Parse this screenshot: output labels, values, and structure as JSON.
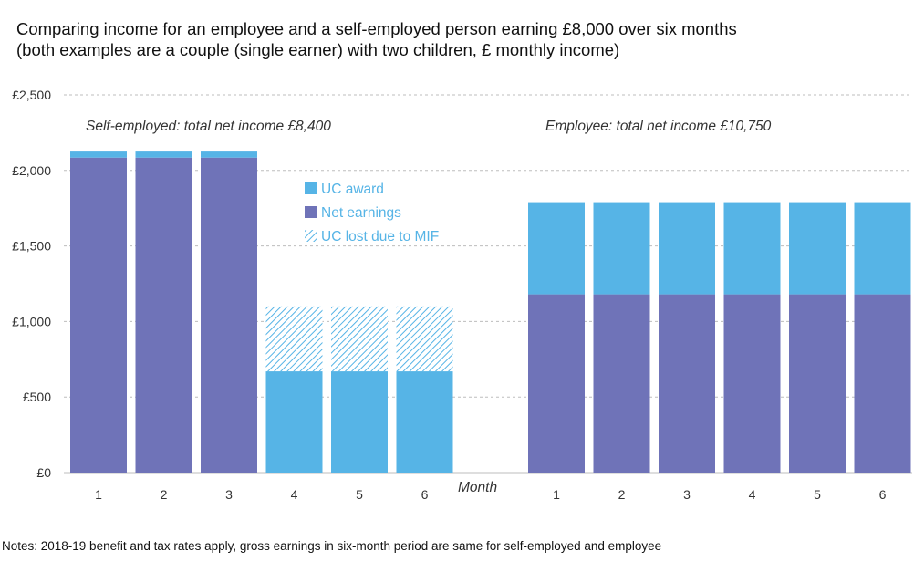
{
  "title_line1": "Comparing income for an employee and a self-employed person earning £8,000 over six months",
  "title_line2": "(both examples are a couple (single earner) with two children, £ monthly income)",
  "notes": "Notes: 2018-19 benefit and tax rates apply, gross earnings in six-month period are same for self-employed and employee",
  "colors": {
    "uc_award": "#56b4e6",
    "net_earnings": "#6f73b8",
    "uc_lost_hatch": "#56b4e6",
    "grid": "#bdbdbd",
    "legend_text": "#56b4e6"
  },
  "chart_data": {
    "type": "bar",
    "stacked": true,
    "xlabel": "Month",
    "ylim": [
      0,
      2500
    ],
    "yticks": [
      0,
      500,
      1000,
      1500,
      2000,
      2500
    ],
    "ytick_labels": [
      "£0",
      "£500",
      "£1,000",
      "£1,500",
      "£2,000",
      "£2,500"
    ],
    "grid": true,
    "legend_placement": "center",
    "legend": [
      "UC award",
      "Net earnings",
      "UC lost due to MIF"
    ],
    "groups": [
      {
        "annotation": "Self-employed: total net income £8,400",
        "categories": [
          "1",
          "2",
          "3",
          "4",
          "5",
          "6"
        ],
        "series": [
          {
            "name": "Net earnings",
            "values": [
              2085,
              2085,
              2085,
              0,
              0,
              0
            ]
          },
          {
            "name": "UC award",
            "values": [
              40,
              40,
              40,
              670,
              670,
              670
            ]
          },
          {
            "name": "UC lost due to MIF",
            "values": [
              0,
              0,
              0,
              430,
              430,
              430
            ]
          }
        ]
      },
      {
        "annotation": "Employee: total net income £10,750",
        "categories": [
          "1",
          "2",
          "3",
          "4",
          "5",
          "6"
        ],
        "series": [
          {
            "name": "Net earnings",
            "values": [
              1180,
              1180,
              1180,
              1180,
              1180,
              1180
            ]
          },
          {
            "name": "UC award",
            "values": [
              610,
              610,
              610,
              610,
              610,
              610
            ]
          },
          {
            "name": "UC lost due to MIF",
            "values": [
              0,
              0,
              0,
              0,
              0,
              0
            ]
          }
        ]
      }
    ]
  }
}
